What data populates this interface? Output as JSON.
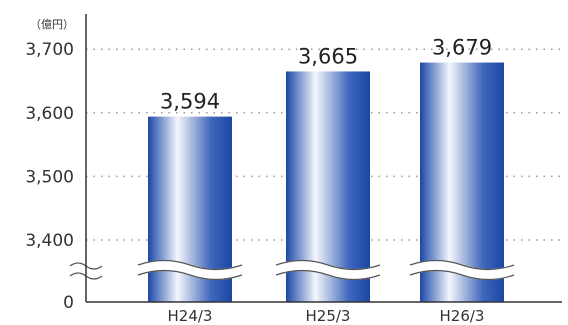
{
  "chart_data": {
    "type": "bar",
    "unit_label": "（億円）",
    "categories": [
      "H24/3",
      "H25/3",
      "H26/3"
    ],
    "values": [
      3594,
      3665,
      3679
    ],
    "value_labels": [
      "3,594",
      "3,665",
      "3,679"
    ],
    "y_ticks": [
      0,
      3400,
      3500,
      3600,
      3700
    ],
    "y_tick_labels": [
      "0",
      "3,400",
      "3,500",
      "3,600",
      "3,700"
    ],
    "ylim": [
      3400,
      3750
    ],
    "axis_break": true,
    "grid": "dotted horizontal",
    "colors": {
      "bar_dark": "#1a47a3",
      "bar_light": "#f4f6fc",
      "grid": "#999999",
      "axis": "#333333"
    }
  }
}
